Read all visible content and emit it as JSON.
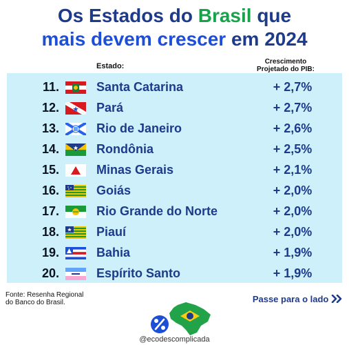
{
  "title": {
    "line1_pre": "Os Estados do ",
    "line1_highlight": "Brasil",
    "line1_post": " que",
    "line2_highlight": "mais devem crescer",
    "line2_post": " em 2024"
  },
  "chart_data": {
    "type": "table",
    "columns": [
      "Estado:",
      "Crescimento Projetado do PIB:"
    ],
    "header_state": "Estado:",
    "header_growth_line1": "Crescimento",
    "header_growth_line2": "Projetado do PIB:",
    "rows": [
      {
        "rank": "11.",
        "state": "Santa Catarina",
        "value": "+ 2,7%",
        "growth": 2.7,
        "flag": "santa-catarina-flag-icon"
      },
      {
        "rank": "12.",
        "state": "Pará",
        "value": "+ 2,7%",
        "growth": 2.7,
        "flag": "para-flag-icon"
      },
      {
        "rank": "13.",
        "state": "Rio de Janeiro",
        "value": "+ 2,6%",
        "growth": 2.6,
        "flag": "rio-de-janeiro-flag-icon"
      },
      {
        "rank": "14.",
        "state": "Rondônia",
        "value": "+ 2,5%",
        "growth": 2.5,
        "flag": "rondonia-flag-icon"
      },
      {
        "rank": "15.",
        "state": "Minas Gerais",
        "value": "+ 2,1%",
        "growth": 2.1,
        "flag": "minas-gerais-flag-icon"
      },
      {
        "rank": "16.",
        "state": "Goiás",
        "value": "+ 2,0%",
        "growth": 2.0,
        "flag": "goias-flag-icon"
      },
      {
        "rank": "17.",
        "state": "Rio Grande do Norte",
        "value": "+ 2,0%",
        "growth": 2.0,
        "flag": "rio-grande-do-norte-flag-icon"
      },
      {
        "rank": "18.",
        "state": "Piauí",
        "value": "+ 2,0%",
        "growth": 2.0,
        "flag": "piaui-flag-icon"
      },
      {
        "rank": "19.",
        "state": "Bahia",
        "value": "+ 1,9%",
        "growth": 1.9,
        "flag": "bahia-flag-icon"
      },
      {
        "rank": "20.",
        "state": "Espírito Santo",
        "value": "+ 1,9%",
        "growth": 1.9,
        "flag": "espirito-santo-flag-icon"
      }
    ]
  },
  "footer": {
    "source_line1": "Fonte: Resenha Regional",
    "source_line2": "do Banco do Brasil.",
    "next_label": "Passe para o lado",
    "next_icon": "double-chevron-right-icon",
    "handle": "@ecodescomplicada"
  },
  "colors": {
    "title_dark": "#1e3a8a",
    "title_green": "#16a34a",
    "title_blue": "#1d4ed8",
    "table_bg": "#cdf0fa",
    "text_dark": "#0b1220"
  }
}
